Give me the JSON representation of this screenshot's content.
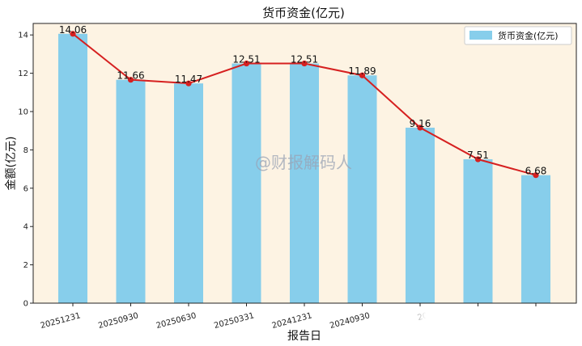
{
  "chart_data": {
    "type": "bar",
    "title": "货币资金(亿元)",
    "xlabel": "报告日",
    "ylabel": "金额(亿元)",
    "categories": [
      "20251231",
      "20250930",
      "20250630",
      "20250331",
      "20241231",
      "20240930",
      "20",
      "",
      ""
    ],
    "series": [
      {
        "name": "货币资金(亿元)",
        "values": [
          14.06,
          11.66,
          11.47,
          12.51,
          12.51,
          11.89,
          9.16,
          7.51,
          6.68
        ]
      }
    ],
    "data_labels": [
      "14.06",
      "11.66",
      "11.47",
      "12.51",
      "12.51",
      "11.89",
      "9.16",
      "7.51",
      "6.68"
    ],
    "line_overlay": {
      "values": [
        14.06,
        11.66,
        11.47,
        12.51,
        12.51,
        11.89,
        9.16,
        7.51,
        6.68
      ]
    },
    "ylim": [
      0,
      14.6
    ],
    "yticks": [
      0,
      2,
      4,
      6,
      8,
      10,
      12,
      14
    ],
    "legend_position": "top-right",
    "grid": false,
    "colors": {
      "bar": "#87ceeb",
      "line": "#d62020",
      "plot_background": "#fdf3e3"
    },
    "watermark": "@财报解码人"
  }
}
